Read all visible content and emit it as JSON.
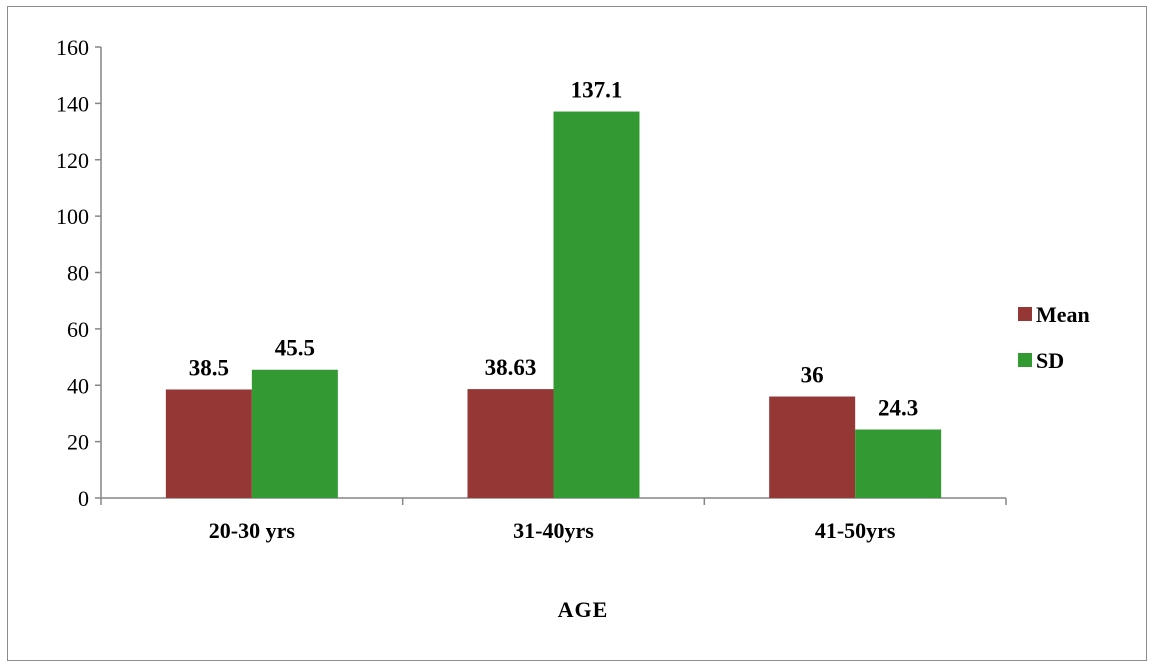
{
  "chart_data": {
    "type": "bar",
    "categories": [
      "20-30 yrs",
      "31-40yrs",
      "41-50yrs"
    ],
    "series": [
      {
        "name": "Mean",
        "values": [
          38.5,
          38.63,
          36
        ],
        "color": "#953735"
      },
      {
        "name": "SD",
        "values": [
          45.5,
          137.1,
          24.3
        ],
        "color": "#339933"
      }
    ],
    "data_labels": [
      [
        "38.5",
        "38.63",
        "36"
      ],
      [
        "45.5",
        "137.1",
        "24.3"
      ]
    ],
    "xlabel": "AGE",
    "ylabel": "",
    "ylim": [
      0,
      160
    ],
    "yticks": [
      "0",
      "20",
      "40",
      "60",
      "80",
      "100",
      "120",
      "140",
      "160"
    ],
    "grid": false,
    "legend_position": "right"
  }
}
